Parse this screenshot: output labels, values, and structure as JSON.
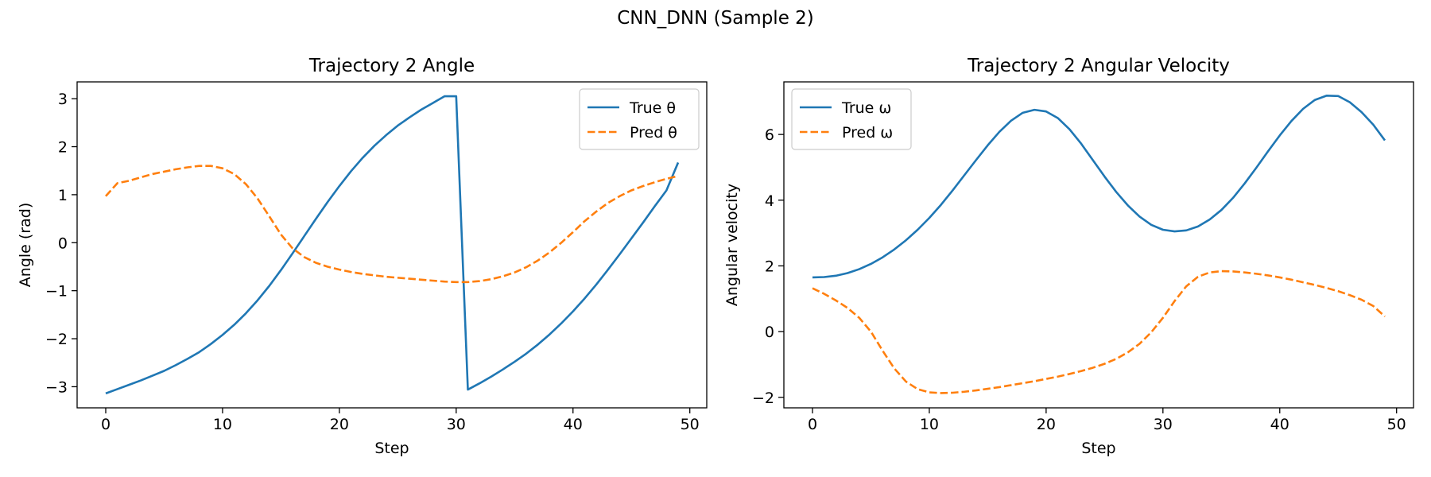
{
  "figure": {
    "suptitle": "CNN_DNN (Sample 2)"
  },
  "chart_data": [
    {
      "type": "line",
      "title": "Trajectory 2 Angle",
      "xlabel": "Step",
      "ylabel": "Angle (rad)",
      "xlim": [
        -2.45,
        51.45
      ],
      "ylim": [
        -3.44,
        3.35
      ],
      "xticks": [
        0,
        10,
        20,
        30,
        40,
        50
      ],
      "yticks": [
        -3,
        -2,
        -1,
        0,
        1,
        2,
        3
      ],
      "tick_labels_y": [
        "−3",
        "−2",
        "−1",
        "0",
        "1",
        "2",
        "3"
      ],
      "legend": "upper right",
      "grid": false,
      "series": [
        {
          "name": "True θ",
          "color": "#1f77b4",
          "style": "solid",
          "x": [
            0,
            1,
            2,
            3,
            4,
            5,
            6,
            7,
            8,
            9,
            10,
            11,
            12,
            13,
            14,
            15,
            16,
            17,
            18,
            19,
            20,
            21,
            22,
            23,
            24,
            25,
            26,
            27,
            28,
            29,
            30,
            31,
            32,
            33,
            34,
            35,
            36,
            37,
            38,
            39,
            40,
            41,
            42,
            43,
            44,
            45,
            46,
            47,
            48,
            49
          ],
          "y": [
            -3.14,
            -3.05,
            -2.96,
            -2.87,
            -2.77,
            -2.67,
            -2.55,
            -2.42,
            -2.28,
            -2.11,
            -1.92,
            -1.71,
            -1.47,
            -1.2,
            -0.9,
            -0.57,
            -0.22,
            0.14,
            0.5,
            0.85,
            1.18,
            1.49,
            1.77,
            2.02,
            2.24,
            2.44,
            2.61,
            2.77,
            2.91,
            3.05,
            3.05,
            -3.06,
            -2.93,
            -2.79,
            -2.64,
            -2.48,
            -2.31,
            -2.12,
            -1.91,
            -1.68,
            -1.43,
            -1.16,
            -0.87,
            -0.56,
            -0.24,
            0.09,
            0.42,
            0.76,
            1.09,
            1.67
          ]
        },
        {
          "name": "Pred θ",
          "color": "#ff7f0e",
          "style": "dashed",
          "x": [
            0,
            1,
            2,
            3,
            4,
            5,
            6,
            7,
            8,
            9,
            10,
            11,
            12,
            13,
            14,
            15,
            16,
            17,
            18,
            19,
            20,
            21,
            22,
            23,
            24,
            25,
            26,
            27,
            28,
            29,
            30,
            31,
            32,
            33,
            34,
            35,
            36,
            37,
            38,
            39,
            40,
            41,
            42,
            43,
            44,
            45,
            46,
            47,
            48,
            49
          ],
          "y": [
            0.97,
            1.24,
            1.29,
            1.36,
            1.43,
            1.48,
            1.53,
            1.57,
            1.6,
            1.6,
            1.55,
            1.43,
            1.22,
            0.92,
            0.55,
            0.17,
            -0.12,
            -0.3,
            -0.42,
            -0.5,
            -0.56,
            -0.61,
            -0.65,
            -0.68,
            -0.71,
            -0.73,
            -0.75,
            -0.77,
            -0.79,
            -0.81,
            -0.82,
            -0.82,
            -0.8,
            -0.76,
            -0.7,
            -0.62,
            -0.51,
            -0.37,
            -0.2,
            0.0,
            0.22,
            0.45,
            0.65,
            0.83,
            0.97,
            1.09,
            1.18,
            1.26,
            1.33,
            1.39
          ]
        }
      ]
    },
    {
      "type": "line",
      "title": "Trajectory 2 Angular Velocity",
      "xlabel": "Step",
      "ylabel": "Angular velocity",
      "xlim": [
        -2.45,
        51.45
      ],
      "ylim": [
        -2.32,
        7.6
      ],
      "xticks": [
        0,
        10,
        20,
        30,
        40,
        50
      ],
      "yticks": [
        -2,
        0,
        2,
        4,
        6
      ],
      "tick_labels_y": [
        "−2",
        "0",
        "2",
        "4",
        "6"
      ],
      "legend": "upper left",
      "grid": false,
      "series": [
        {
          "name": "True ω",
          "color": "#1f77b4",
          "style": "solid",
          "x": [
            0,
            1,
            2,
            3,
            4,
            5,
            6,
            7,
            8,
            9,
            10,
            11,
            12,
            13,
            14,
            15,
            16,
            17,
            18,
            19,
            20,
            21,
            22,
            23,
            24,
            25,
            26,
            27,
            28,
            29,
            30,
            31,
            32,
            33,
            34,
            35,
            36,
            37,
            38,
            39,
            40,
            41,
            42,
            43,
            44,
            45,
            46,
            47,
            48,
            49
          ],
          "y": [
            1.65,
            1.66,
            1.7,
            1.78,
            1.9,
            2.06,
            2.26,
            2.5,
            2.78,
            3.1,
            3.46,
            3.86,
            4.3,
            4.76,
            5.22,
            5.67,
            6.08,
            6.42,
            6.66,
            6.75,
            6.7,
            6.5,
            6.16,
            5.72,
            5.22,
            4.72,
            4.25,
            3.84,
            3.5,
            3.25,
            3.1,
            3.05,
            3.08,
            3.2,
            3.41,
            3.7,
            4.07,
            4.51,
            4.99,
            5.49,
            5.97,
            6.41,
            6.78,
            7.05,
            7.18,
            7.17,
            6.98,
            6.68,
            6.3,
            5.82
          ]
        },
        {
          "name": "Pred ω",
          "color": "#ff7f0e",
          "style": "dashed",
          "x": [
            0,
            1,
            2,
            3,
            4,
            5,
            6,
            7,
            8,
            9,
            10,
            11,
            12,
            13,
            14,
            15,
            16,
            17,
            18,
            19,
            20,
            21,
            22,
            23,
            24,
            25,
            26,
            27,
            28,
            29,
            30,
            31,
            32,
            33,
            34,
            35,
            36,
            37,
            38,
            39,
            40,
            41,
            42,
            43,
            44,
            45,
            46,
            47,
            48,
            49
          ],
          "y": [
            1.32,
            1.15,
            0.95,
            0.72,
            0.42,
            0.0,
            -0.58,
            -1.12,
            -1.52,
            -1.75,
            -1.85,
            -1.87,
            -1.86,
            -1.83,
            -1.79,
            -1.74,
            -1.69,
            -1.63,
            -1.57,
            -1.51,
            -1.44,
            -1.37,
            -1.29,
            -1.2,
            -1.1,
            -0.98,
            -0.83,
            -0.63,
            -0.37,
            -0.02,
            0.42,
            0.93,
            1.38,
            1.67,
            1.8,
            1.84,
            1.83,
            1.8,
            1.76,
            1.71,
            1.65,
            1.58,
            1.5,
            1.42,
            1.33,
            1.23,
            1.11,
            0.97,
            0.78,
            0.46
          ]
        }
      ]
    }
  ]
}
